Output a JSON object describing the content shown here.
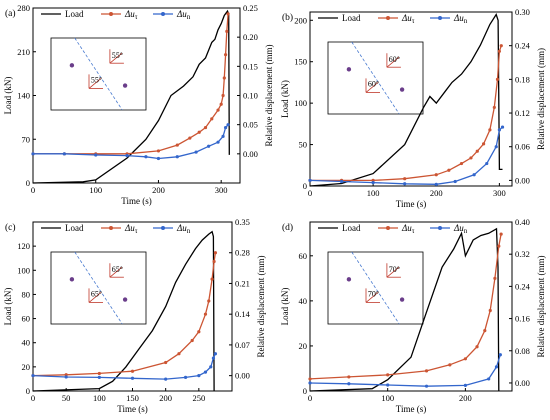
{
  "chart_data": [
    {
      "type": "line",
      "panel_label": "(a)",
      "xlabel": "Time (s)",
      "ylabel": "Load (kN)",
      "y2label": "Relative displacement (mm)",
      "xlim": [
        0,
        330
      ],
      "ylim": [
        0,
        280
      ],
      "y2lim": [
        -0.05,
        0.25
      ],
      "xticks": [
        0,
        100,
        200,
        300
      ],
      "yticks": [
        0,
        70,
        140,
        210,
        280
      ],
      "y2ticks": [
        0.0,
        0.05,
        0.1,
        0.15,
        0.2,
        0.25
      ],
      "legend": [
        "Load",
        "Δu_τ",
        "Δu_n"
      ],
      "insert_angle": "55°",
      "series": [
        {
          "name": "Load",
          "axis": "left",
          "color": "#000000",
          "x": [
            0,
            40,
            80,
            100,
            150,
            180,
            200,
            220,
            240,
            255,
            265,
            275,
            285,
            290,
            295,
            300,
            305,
            310,
            312,
            313
          ],
          "y": [
            0,
            1,
            2,
            5,
            40,
            70,
            100,
            140,
            155,
            170,
            190,
            200,
            225,
            230,
            245,
            255,
            268,
            275,
            270,
            45
          ]
        },
        {
          "name": "Δu_τ",
          "axis": "right",
          "color": "#cc5533",
          "x": [
            0,
            50,
            100,
            150,
            200,
            230,
            250,
            265,
            275,
            285,
            295,
            300,
            303,
            305,
            307,
            309,
            311
          ],
          "y": [
            0.0,
            0.0,
            0.0,
            0.0,
            0.005,
            0.015,
            0.027,
            0.037,
            0.045,
            0.06,
            0.075,
            0.085,
            0.1,
            0.13,
            0.17,
            0.21,
            0.24
          ]
        },
        {
          "name": "Δu_n",
          "axis": "right",
          "color": "#3366cc",
          "x": [
            0,
            50,
            100,
            150,
            180,
            200,
            230,
            260,
            280,
            295,
            303,
            307,
            311
          ],
          "y": [
            0.0,
            0.0,
            -0.002,
            -0.003,
            -0.005,
            -0.008,
            -0.005,
            0.003,
            0.013,
            0.02,
            0.03,
            0.045,
            0.05
          ]
        }
      ]
    },
    {
      "type": "line",
      "panel_label": "(b)",
      "xlabel": "Time (s)",
      "ylabel": "Load (kN)",
      "y2label": "Relative displacement (mm)",
      "xlim": [
        0,
        320
      ],
      "ylim": [
        0,
        210
      ],
      "y2lim": [
        -0.01,
        0.3
      ],
      "xticks": [
        0,
        100,
        200,
        300
      ],
      "yticks": [
        0,
        50,
        100,
        150,
        200
      ],
      "y2ticks": [
        0.0,
        0.06,
        0.12,
        0.18,
        0.24,
        0.3
      ],
      "legend": [
        "Load",
        "Δu_τ",
        "Δu_n"
      ],
      "insert_angle": "60°",
      "series": [
        {
          "name": "Load",
          "axis": "left",
          "color": "#000000",
          "x": [
            0,
            50,
            100,
            150,
            180,
            190,
            200,
            215,
            225,
            240,
            255,
            270,
            285,
            295,
            298,
            300,
            305
          ],
          "y": [
            0,
            3,
            15,
            50,
            95,
            108,
            100,
            115,
            125,
            135,
            150,
            170,
            195,
            207,
            200,
            20,
            20
          ]
        },
        {
          "name": "Δu_τ",
          "axis": "right",
          "color": "#cc5533",
          "x": [
            0,
            50,
            100,
            150,
            200,
            220,
            240,
            255,
            265,
            275,
            285,
            292,
            297,
            300,
            303
          ],
          "y": [
            0.0,
            0.0,
            0.0,
            0.003,
            0.01,
            0.018,
            0.03,
            0.04,
            0.052,
            0.065,
            0.09,
            0.13,
            0.18,
            0.23,
            0.24
          ]
        },
        {
          "name": "Δu_n",
          "axis": "right",
          "color": "#3366cc",
          "x": [
            0,
            50,
            100,
            150,
            200,
            230,
            260,
            280,
            295,
            300,
            305
          ],
          "y": [
            0.0,
            -0.002,
            -0.004,
            -0.006,
            -0.007,
            -0.002,
            0.01,
            0.03,
            0.06,
            0.09,
            0.095
          ]
        }
      ]
    },
    {
      "type": "line",
      "panel_label": "(c)",
      "xlabel": "Time (s)",
      "ylabel": "Load (kN)",
      "y2label": "Relative displacement (mm)",
      "xlim": [
        0,
        300
      ],
      "ylim": [
        0,
        140
      ],
      "y2lim": [
        -0.035,
        0.35
      ],
      "xticks": [
        0,
        50,
        100,
        150,
        200,
        250
      ],
      "yticks": [
        0,
        20,
        40,
        60,
        80,
        100,
        120
      ],
      "y2ticks": [
        0.0,
        0.07,
        0.14,
        0.21,
        0.28,
        0.35
      ],
      "legend": [
        "Load",
        "Δu_τ",
        "Δu_n"
      ],
      "insert_angle": "65°",
      "series": [
        {
          "name": "Load",
          "axis": "left",
          "color": "#000000",
          "x": [
            0,
            100,
            120,
            140,
            160,
            180,
            200,
            215,
            230,
            245,
            255,
            265,
            270,
            272,
            273
          ],
          "y": [
            0,
            2,
            8,
            20,
            35,
            50,
            70,
            90,
            105,
            118,
            125,
            130,
            132,
            128,
            0
          ]
        },
        {
          "name": "Δu_τ",
          "axis": "right",
          "color": "#cc5533",
          "x": [
            0,
            50,
            100,
            150,
            200,
            220,
            240,
            250,
            260,
            265,
            270,
            273,
            275
          ],
          "y": [
            0.0,
            0.002,
            0.005,
            0.01,
            0.03,
            0.05,
            0.08,
            0.1,
            0.14,
            0.17,
            0.22,
            0.26,
            0.28
          ]
        },
        {
          "name": "Δu_n",
          "axis": "right",
          "color": "#3366cc",
          "x": [
            0,
            50,
            100,
            150,
            200,
            230,
            250,
            260,
            268,
            272,
            275
          ],
          "y": [
            0.0,
            -0.003,
            -0.004,
            -0.006,
            -0.008,
            -0.004,
            0.0,
            0.008,
            0.02,
            0.04,
            0.05
          ]
        }
      ]
    },
    {
      "type": "line",
      "panel_label": "(d)",
      "xlabel": "Time (s)",
      "ylabel": "Load (kN)",
      "y2label": "Relative displacement (mm)",
      "xlim": [
        0,
        260
      ],
      "ylim": [
        0,
        75
      ],
      "y2lim": [
        -0.02,
        0.4
      ],
      "xticks": [
        0,
        100,
        200
      ],
      "yticks": [
        0,
        20,
        40,
        60
      ],
      "y2ticks": [
        0.0,
        0.08,
        0.16,
        0.24,
        0.32,
        0.4
      ],
      "legend": [
        "Load",
        "Δu_τ",
        "Δu_n"
      ],
      "insert_angle": "70°",
      "series": [
        {
          "name": "Load",
          "axis": "left",
          "color": "#000000",
          "x": [
            0,
            80,
            100,
            130,
            150,
            170,
            185,
            195,
            200,
            210,
            220,
            230,
            240,
            242,
            243
          ],
          "y": [
            0,
            1,
            5,
            15,
            35,
            55,
            63,
            70,
            60,
            67,
            69,
            70,
            72,
            55,
            0
          ]
        },
        {
          "name": "Δu_τ",
          "axis": "right",
          "color": "#cc5533",
          "x": [
            0,
            50,
            100,
            150,
            180,
            200,
            215,
            225,
            232,
            238,
            243,
            246
          ],
          "y": [
            0.01,
            0.015,
            0.02,
            0.03,
            0.045,
            0.06,
            0.09,
            0.13,
            0.18,
            0.26,
            0.34,
            0.37
          ]
        },
        {
          "name": "Δu_n",
          "axis": "right",
          "color": "#3366cc",
          "x": [
            0,
            50,
            100,
            150,
            200,
            230,
            240,
            245
          ],
          "y": [
            0.0,
            -0.002,
            -0.005,
            -0.008,
            -0.006,
            0.01,
            0.04,
            0.07
          ]
        }
      ]
    }
  ]
}
